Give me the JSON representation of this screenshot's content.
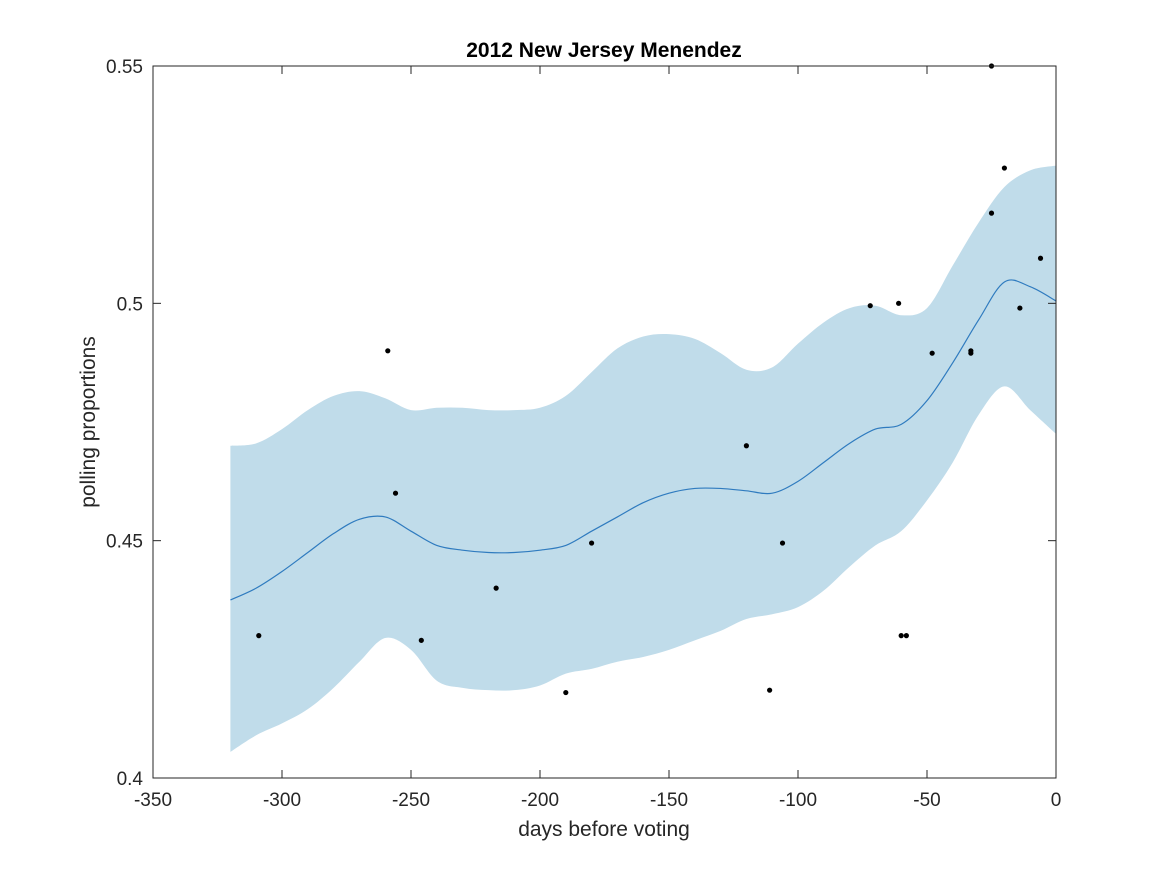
{
  "chart_data": {
    "type": "line",
    "title": "2012 New Jersey Menendez",
    "xlabel": "days before voting",
    "ylabel": "polling proportions",
    "xlim": [
      -350,
      0
    ],
    "ylim": [
      0.4,
      0.55
    ],
    "x_ticks": [
      -350,
      -300,
      -250,
      -200,
      -150,
      -100,
      -50,
      0
    ],
    "x_tick_labels": [
      "-350",
      "-300",
      "-250",
      "-200",
      "-150",
      "-100",
      "-50",
      "0"
    ],
    "y_ticks": [
      0.4,
      0.45,
      0.5,
      0.55
    ],
    "y_tick_labels": [
      "0.4",
      "0.45",
      "0.5",
      "0.55"
    ],
    "grid": false,
    "colors": {
      "line": "#2f7bbf",
      "band": "#c0dcea",
      "points": "#000000",
      "axes": "#262626"
    },
    "fit_line": {
      "x": [
        -320,
        -310,
        -300,
        -290,
        -280,
        -270,
        -260,
        -250,
        -240,
        -230,
        -220,
        -210,
        -200,
        -190,
        -180,
        -170,
        -160,
        -150,
        -140,
        -130,
        -120,
        -110,
        -100,
        -90,
        -80,
        -70,
        -60,
        -50,
        -40,
        -30,
        -20,
        -10,
        0
      ],
      "y": [
        0.4375,
        0.44,
        0.4435,
        0.4475,
        0.4515,
        0.4545,
        0.455,
        0.452,
        0.449,
        0.448,
        0.4475,
        0.4475,
        0.448,
        0.449,
        0.452,
        0.455,
        0.458,
        0.46,
        0.461,
        0.461,
        0.4605,
        0.46,
        0.4625,
        0.4665,
        0.4705,
        0.4735,
        0.4745,
        0.4795,
        0.4875,
        0.4965,
        0.5045,
        0.5035,
        0.5005
      ]
    },
    "band_upper": [
      0.47,
      0.4705,
      0.4735,
      0.4775,
      0.4805,
      0.4815,
      0.48,
      0.4775,
      0.478,
      0.478,
      0.4775,
      0.4775,
      0.478,
      0.4805,
      0.4855,
      0.4905,
      0.493,
      0.4935,
      0.4925,
      0.4895,
      0.486,
      0.4865,
      0.4915,
      0.496,
      0.499,
      0.4995,
      0.4975,
      0.499,
      0.508,
      0.517,
      0.5245,
      0.528,
      0.529
    ],
    "band_lower": [
      0.4055,
      0.409,
      0.4115,
      0.4145,
      0.419,
      0.4245,
      0.4295,
      0.427,
      0.4205,
      0.419,
      0.4185,
      0.4185,
      0.4195,
      0.422,
      0.423,
      0.4245,
      0.4255,
      0.427,
      0.429,
      0.431,
      0.4335,
      0.4345,
      0.436,
      0.4395,
      0.4445,
      0.449,
      0.452,
      0.4585,
      0.4665,
      0.4765,
      0.4825,
      0.4775,
      0.4725
    ],
    "poll_points": {
      "x": [
        -309,
        -259,
        -256,
        -246,
        -217,
        -190,
        -180,
        -120,
        -111,
        -106,
        -72,
        -61,
        -60,
        -58,
        -48,
        -33,
        -33,
        -25,
        -25,
        -20,
        -14,
        -6
      ],
      "y": [
        0.43,
        0.49,
        0.46,
        0.429,
        0.44,
        0.418,
        0.4495,
        0.47,
        0.4185,
        0.4495,
        0.4995,
        0.5,
        0.43,
        0.43,
        0.4895,
        0.4895,
        0.49,
        0.55,
        0.519,
        0.5285,
        0.499,
        0.5095
      ]
    }
  }
}
